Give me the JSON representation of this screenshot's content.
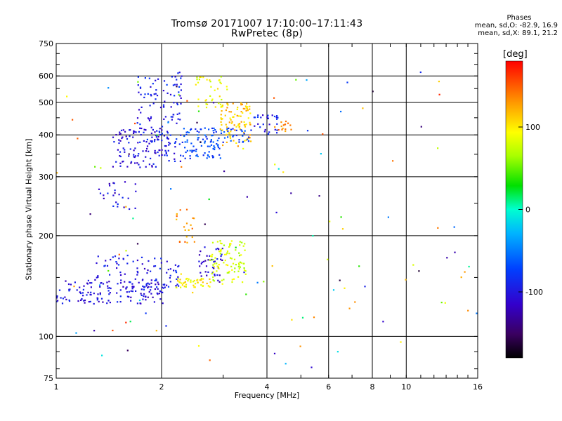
{
  "header": {
    "title_line1": "Tromsø 20171007 17:10:00–17:11:43",
    "title_line2": "RwPretec (8p)"
  },
  "phases_box": {
    "title": "Phases",
    "line_o": "mean, sd,O: -82.9, 16.9",
    "line_x": "mean, sd,X:  89.1, 21.2"
  },
  "colorbar": {
    "unit_label": "[deg]",
    "ticks": [
      100,
      0,
      -100
    ],
    "range": [
      -180,
      180
    ]
  },
  "chart_data": {
    "type": "scatter",
    "xlabel": "Frequency [MHz]",
    "ylabel": "Stationary phase Virtual Height [km]",
    "xscale": "log",
    "yscale": "log",
    "xlim": [
      1,
      16
    ],
    "ylim": [
      75,
      750
    ],
    "x_ticks": [
      1,
      2,
      4,
      6,
      8,
      10,
      16
    ],
    "y_ticks": [
      75,
      100,
      200,
      300,
      400,
      500,
      600,
      750
    ],
    "grid": true,
    "clusters": [
      {
        "x": [
          1.0,
          2.05
        ],
        "y": [
          125,
          148
        ],
        "phase": -105,
        "n": 150
      },
      {
        "x": [
          1.3,
          2.0
        ],
        "y": [
          140,
          175
        ],
        "phase": -100,
        "n": 60
      },
      {
        "x": [
          2.05,
          2.25
        ],
        "y": [
          140,
          170
        ],
        "phase": -100,
        "n": 20
      },
      {
        "x": [
          2.2,
          2.8
        ],
        "y": [
          140,
          150
        ],
        "phase": 100,
        "n": 45
      },
      {
        "x": [
          2.55,
          3.0
        ],
        "y": [
          145,
          185
        ],
        "phase": -110,
        "n": 40
      },
      {
        "x": [
          2.75,
          3.5
        ],
        "y": [
          145,
          195
        ],
        "phase": 80,
        "n": 90
      },
      {
        "x": [
          2.2,
          2.5
        ],
        "y": [
          190,
          245
        ],
        "phase": 135,
        "n": 20
      },
      {
        "x": [
          1.45,
          2.1
        ],
        "y": [
          320,
          420
        ],
        "phase": -105,
        "n": 110
      },
      {
        "x": [
          1.7,
          2.05
        ],
        "y": [
          380,
          600
        ],
        "phase": -95,
        "n": 60
      },
      {
        "x": [
          2.05,
          2.3
        ],
        "y": [
          330,
          620
        ],
        "phase": -95,
        "n": 60
      },
      {
        "x": [
          2.3,
          3.0
        ],
        "y": [
          340,
          420
        ],
        "phase": -75,
        "n": 90
      },
      {
        "x": [
          2.5,
          3.1
        ],
        "y": [
          480,
          600
        ],
        "phase": 90,
        "n": 40
      },
      {
        "x": [
          2.9,
          3.6
        ],
        "y": [
          370,
          500
        ],
        "phase": 115,
        "n": 90
      },
      {
        "x": [
          3.0,
          3.6
        ],
        "y": [
          380,
          420
        ],
        "phase": -80,
        "n": 25
      },
      {
        "x": [
          3.6,
          4.3
        ],
        "y": [
          400,
          460
        ],
        "phase": -95,
        "n": 30
      },
      {
        "x": [
          4.2,
          4.7
        ],
        "y": [
          410,
          440
        ],
        "phase": 140,
        "n": 15
      },
      {
        "x": [
          1.3,
          1.75
        ],
        "y": [
          240,
          290
        ],
        "phase": -105,
        "n": 25
      },
      {
        "x": [
          1.0,
          16.0
        ],
        "y": [
          80,
          620
        ],
        "phase": 0,
        "n": 120
      }
    ]
  }
}
